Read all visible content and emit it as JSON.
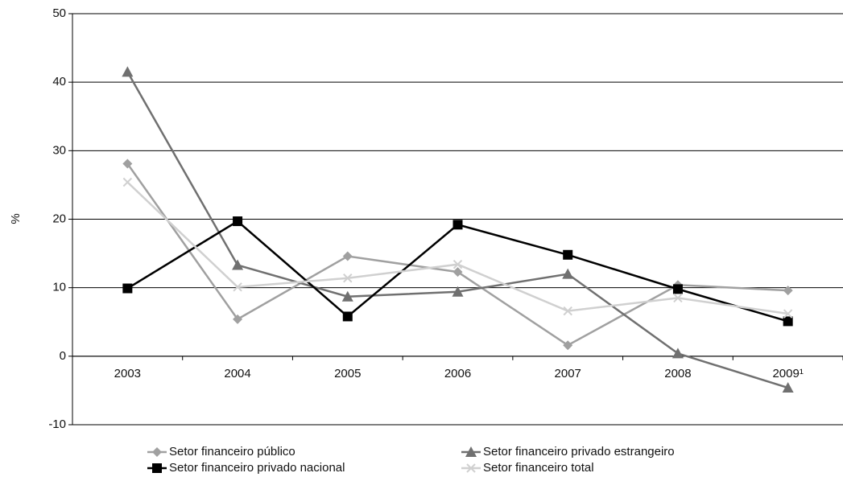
{
  "chart_data": {
    "type": "line",
    "y_label": "%",
    "categories": [
      "2003",
      "2004",
      "2005",
      "2006",
      "2007",
      "2008",
      "2009¹"
    ],
    "series": [
      {
        "name": "Setor financeiro público",
        "color": "#a0a0a0",
        "marker": "diamond",
        "values": [
          28.1,
          5.4,
          14.6,
          12.3,
          1.6,
          10.4,
          9.6
        ]
      },
      {
        "name": "Setor financeiro privado estrangeiro",
        "color": "#707070",
        "marker": "triangle",
        "values": [
          41.5,
          13.3,
          8.7,
          9.4,
          12.0,
          0.4,
          -4.6
        ]
      },
      {
        "name": "Setor financeiro privado nacional",
        "color": "#000000",
        "marker": "square",
        "values": [
          9.9,
          19.7,
          5.8,
          19.2,
          14.8,
          9.8,
          5.1
        ]
      },
      {
        "name": "Setor financeiro total",
        "color": "#d0d0d0",
        "marker": "x",
        "values": [
          25.4,
          10.1,
          11.4,
          13.4,
          6.6,
          8.5,
          6.2
        ]
      }
    ],
    "ylim": [
      -10,
      50
    ],
    "yticks": [
      -10,
      0,
      10,
      20,
      30,
      40,
      50
    ],
    "grid": true,
    "legend": "bottom"
  }
}
